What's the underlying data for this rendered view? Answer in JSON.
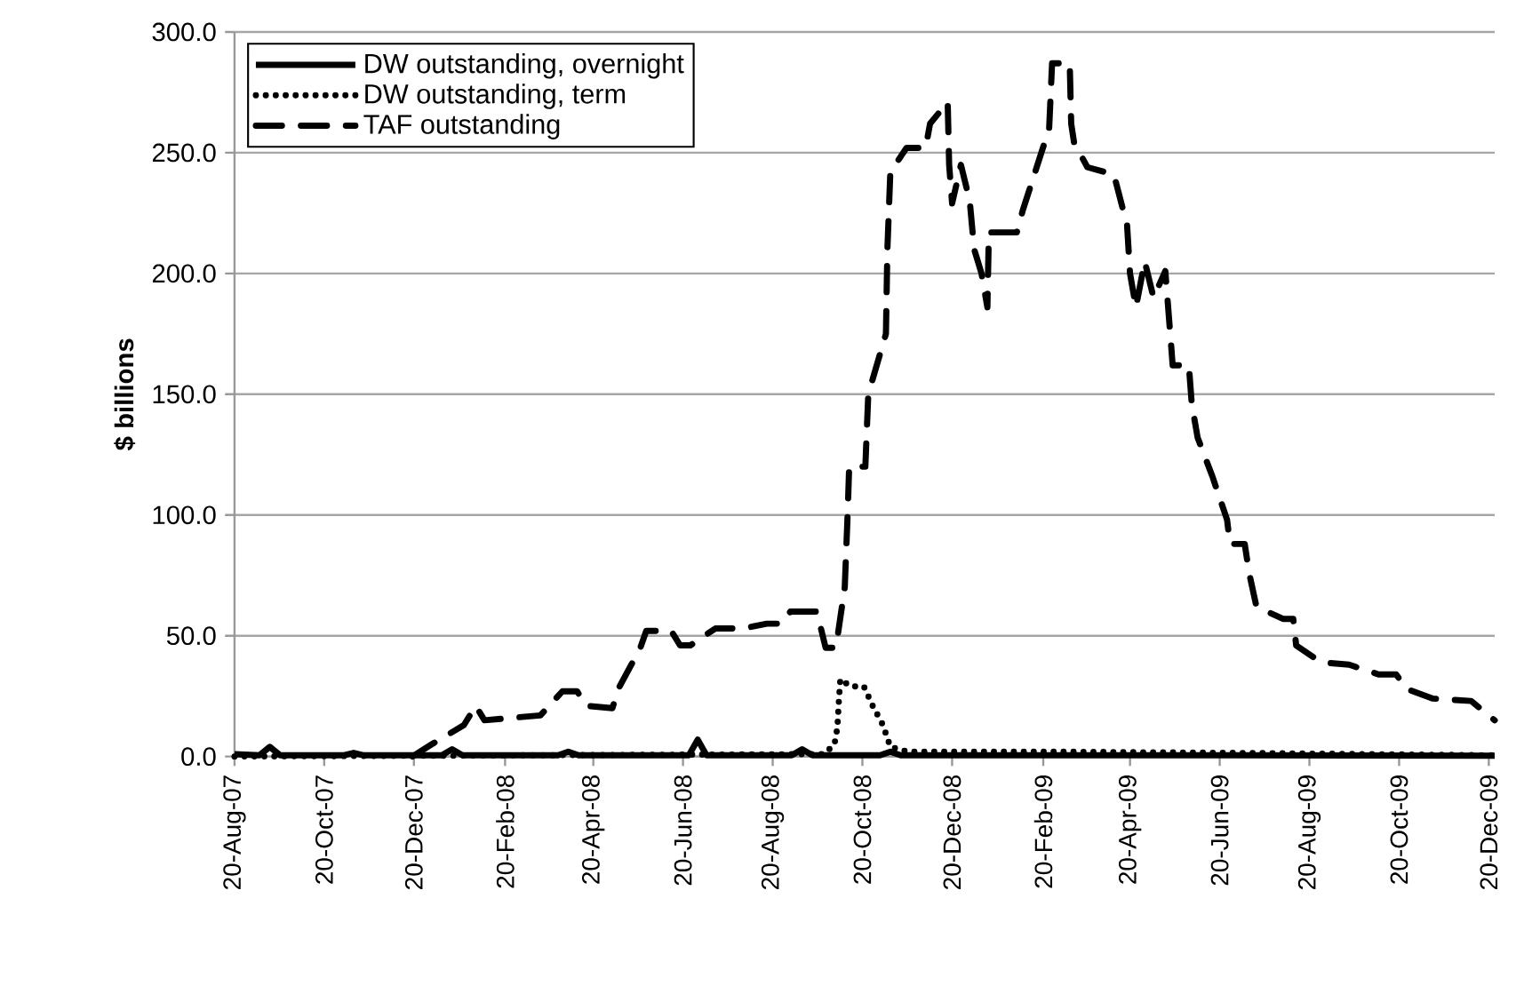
{
  "chart_data": {
    "type": "line",
    "ylabel": "$ billions",
    "xlim": [
      "2007-08-20",
      "2009-12-24"
    ],
    "ylim": [
      0,
      300
    ],
    "xticks": [
      {
        "value": "2007-08-20",
        "label": "20-Aug-07"
      },
      {
        "value": "2007-10-20",
        "label": "20-Oct-07"
      },
      {
        "value": "2007-12-20",
        "label": "20-Dec-07"
      },
      {
        "value": "2008-02-20",
        "label": "20-Feb-08"
      },
      {
        "value": "2008-04-20",
        "label": "20-Apr-08"
      },
      {
        "value": "2008-06-20",
        "label": "20-Jun-08"
      },
      {
        "value": "2008-08-20",
        "label": "20-Aug-08"
      },
      {
        "value": "2008-10-20",
        "label": "20-Oct-08"
      },
      {
        "value": "2008-12-20",
        "label": "20-Dec-08"
      },
      {
        "value": "2009-02-20",
        "label": "20-Feb-09"
      },
      {
        "value": "2009-04-20",
        "label": "20-Apr-09"
      },
      {
        "value": "2009-06-20",
        "label": "20-Jun-09"
      },
      {
        "value": "2009-08-20",
        "label": "20-Aug-09"
      },
      {
        "value": "2009-10-20",
        "label": "20-Oct-09"
      },
      {
        "value": "2009-12-20",
        "label": "20-Dec-09"
      }
    ],
    "yticks": [
      {
        "value": 0,
        "label": "0.0"
      },
      {
        "value": 50,
        "label": "50.0"
      },
      {
        "value": 100,
        "label": "100.0"
      },
      {
        "value": 150,
        "label": "150.0"
      },
      {
        "value": 200,
        "label": "200.0"
      },
      {
        "value": 250,
        "label": "250.0"
      },
      {
        "value": 300,
        "label": "300.0"
      }
    ],
    "grid": "y",
    "legend": "top left",
    "series": [
      {
        "name": "DW outstanding, overnight",
        "color": "#000000",
        "line_style": "solid",
        "x": [
          "2007-08-20",
          "2007-09-06",
          "2007-09-13",
          "2007-09-20",
          "2007-11-02",
          "2007-11-09",
          "2007-11-16",
          "2008-01-08",
          "2008-01-15",
          "2008-01-22",
          "2008-03-27",
          "2008-04-03",
          "2008-04-10",
          "2008-06-24",
          "2008-06-30",
          "2008-07-06",
          "2008-09-02",
          "2008-09-09",
          "2008-09-16",
          "2008-11-01",
          "2008-11-08",
          "2008-11-15",
          "2009-03-01",
          "2009-07-01",
          "2009-12-24"
        ],
        "values": [
          1,
          0.5,
          4,
          0.5,
          0.5,
          1.5,
          0.5,
          0.5,
          3,
          0.5,
          0.5,
          2,
          0.5,
          0.5,
          7,
          0.5,
          0.5,
          3,
          0.5,
          0.5,
          2,
          0.5,
          0.5,
          0.5,
          0.3
        ]
      },
      {
        "name": "DW outstanding, term",
        "color": "#000000",
        "line_style": "dotted",
        "x": [
          "2007-08-20",
          "2008-09-24",
          "2008-10-01",
          "2008-10-03",
          "2008-10-04",
          "2008-10-05",
          "2008-10-12",
          "2008-10-21",
          "2008-10-27",
          "2008-11-03",
          "2008-11-08",
          "2008-11-20",
          "2009-03-01",
          "2009-07-01",
          "2009-12-24"
        ],
        "values": [
          0,
          1,
          5,
          12,
          23,
          32,
          29,
          29,
          21,
          13,
          4,
          2,
          2,
          1.5,
          0.5
        ]
      },
      {
        "name": "TAF outstanding",
        "color": "#000000",
        "line_style": "dashed",
        "x": [
          "2007-12-19",
          "2008-01-01",
          "2008-01-23",
          "2008-01-31",
          "2008-02-06",
          "2008-02-24",
          "2008-03-15",
          "2008-03-30",
          "2008-04-09",
          "2008-04-15",
          "2008-05-03",
          "2008-05-07",
          "2008-05-22",
          "2008-05-26",
          "2008-06-12",
          "2008-06-18",
          "2008-06-25",
          "2008-07-12",
          "2008-07-31",
          "2008-08-16",
          "2008-08-26",
          "2008-09-01",
          "2008-09-19",
          "2008-09-25",
          "2008-10-02",
          "2008-10-08",
          "2008-10-10",
          "2008-10-11",
          "2008-10-22",
          "2008-10-24",
          "2008-11-05",
          "2008-11-06",
          "2008-11-08",
          "2008-11-19",
          "2008-12-02",
          "2008-12-05",
          "2008-12-17",
          "2008-12-18",
          "2008-12-20",
          "2008-12-26",
          "2009-01-01",
          "2009-01-04",
          "2009-01-09",
          "2009-01-13",
          "2009-01-14",
          "2009-02-02",
          "2009-02-06",
          "2009-02-24",
          "2009-02-26",
          "2009-03-10",
          "2009-03-11",
          "2009-03-13",
          "2009-03-22",
          "2009-04-09",
          "2009-04-18",
          "2009-04-20",
          "2009-04-24",
          "2009-04-30",
          "2009-05-06",
          "2009-05-14",
          "2009-05-18",
          "2009-05-19",
          "2009-05-30",
          "2009-06-01",
          "2009-06-05",
          "2009-06-15",
          "2009-06-25",
          "2009-06-27",
          "2009-07-07",
          "2009-07-10",
          "2009-07-15",
          "2009-08-02",
          "2009-08-09",
          "2009-08-11",
          "2009-08-23",
          "2009-08-29",
          "2009-09-16",
          "2009-10-06",
          "2009-10-18",
          "2009-10-25",
          "2009-11-12",
          "2009-12-08",
          "2009-12-24"
        ],
        "values": [
          0,
          5,
          13,
          21,
          15,
          16,
          17,
          27,
          27,
          21,
          20,
          28,
          45,
          52,
          52,
          46,
          46,
          53,
          53,
          55,
          55,
          60,
          60,
          45,
          45,
          70,
          101,
          120,
          120,
          150,
          175,
          210,
          242,
          252,
          252,
          262,
          271,
          245,
          229,
          245,
          230,
          210,
          200,
          186,
          217,
          217,
          226,
          260,
          287,
          287,
          262,
          254,
          244,
          241,
          220,
          200,
          186,
          205,
          190,
          201,
          170,
          162,
          162,
          146,
          132,
          116,
          98,
          88,
          88,
          76,
          62,
          57,
          57,
          46,
          41,
          39,
          38,
          34,
          34,
          28,
          24,
          23,
          15
        ]
      }
    ]
  }
}
